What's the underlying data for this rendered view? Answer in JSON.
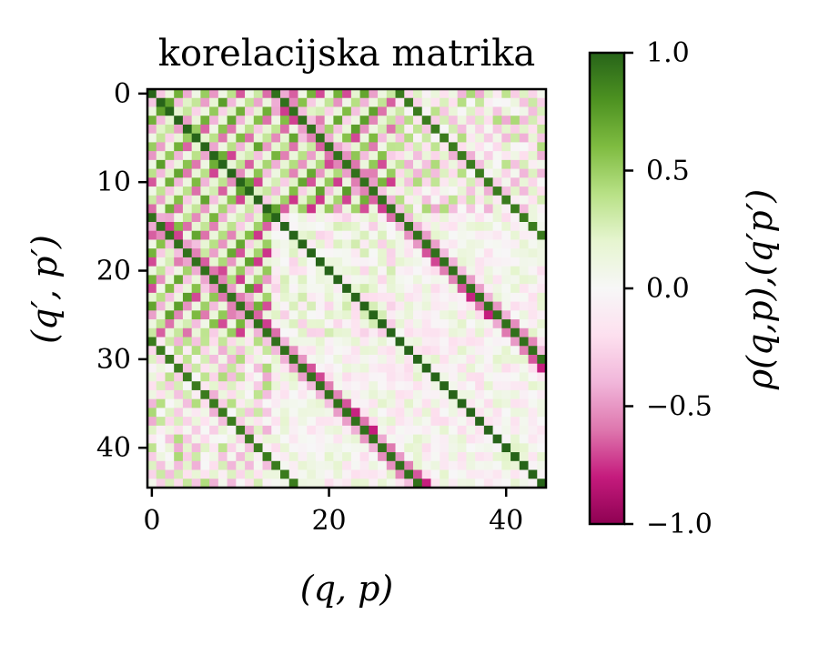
{
  "chart_data": {
    "type": "heatmap",
    "title": "korelacijska matrika",
    "xlabel": "(q, p)",
    "ylabel": "(q′, p′)",
    "colorbar_label": "ρ(q,p),(q′p′)",
    "n": 45,
    "x_ticks": [
      0,
      20,
      40
    ],
    "y_ticks": [
      0,
      10,
      20,
      30,
      40
    ],
    "x_tick_labels": [
      "0",
      "20",
      "40"
    ],
    "y_tick_labels": [
      "0",
      "10",
      "20",
      "30",
      "40"
    ],
    "colorbar_ticks": [
      1.0,
      0.5,
      0.0,
      -0.5,
      -1.0
    ],
    "colorbar_tick_labels": [
      "1.0",
      "0.5",
      "0.0",
      "−0.5",
      "−1.0"
    ],
    "vmin": -1.0,
    "vmax": 1.0,
    "colormap": "PiYG",
    "colors": {
      "negative": "#8e0152",
      "neutral": "#f7f7f7",
      "positive": "#276419"
    },
    "diagonal_value": 1.0,
    "secondary_diagonals": [
      {
        "offset": 14,
        "value": 0.95
      },
      {
        "offset": -14,
        "value": 0.95
      },
      {
        "offset": 28,
        "value": 0.9
      },
      {
        "offset": -28,
        "value": 0.9
      }
    ],
    "strong_negative_diagonals": [
      {
        "offset": 13,
        "value": -0.8
      },
      {
        "offset": -13,
        "value": -0.8
      },
      {
        "offset": 15,
        "value": -0.6
      },
      {
        "offset": -15,
        "value": -0.6
      }
    ],
    "block_amplitude_top_left": 0.75,
    "noise_amplitude": 0.22
  }
}
